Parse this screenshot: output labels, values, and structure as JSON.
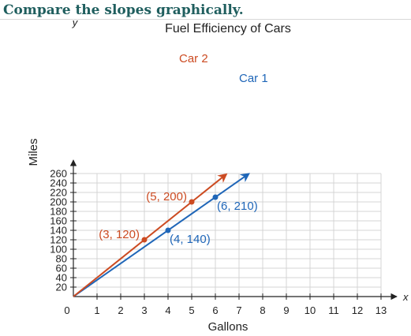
{
  "heading": "Compare the slopes graphically.",
  "chart_data": {
    "type": "line",
    "title": "Fuel Efficiency of Cars",
    "xlabel": "Gallons",
    "ylabel": "Miles",
    "x_var": "x",
    "y_var": "y",
    "xlim": [
      0,
      13
    ],
    "ylim": [
      0,
      260
    ],
    "x_ticks": [
      0,
      1,
      2,
      3,
      4,
      5,
      6,
      7,
      8,
      9,
      10,
      11,
      12,
      13
    ],
    "y_ticks": [
      20,
      40,
      60,
      80,
      100,
      120,
      140,
      160,
      180,
      200,
      220,
      240,
      260
    ],
    "grid": true,
    "series": [
      {
        "name": "Car 1",
        "color": "#1f66b8",
        "line": [
          [
            0,
            0
          ],
          [
            7.4,
            259
          ]
        ],
        "points": [
          [
            4,
            140
          ],
          [
            6,
            210
          ]
        ],
        "point_labels": [
          "(4, 140)",
          "(6, 210)"
        ]
      },
      {
        "name": "Car 2",
        "color": "#cc4b22",
        "line": [
          [
            0,
            0
          ],
          [
            6.45,
            258
          ]
        ],
        "points": [
          [
            3,
            120
          ],
          [
            5,
            200
          ]
        ],
        "point_labels": [
          "(3, 120)",
          "(5, 200)"
        ]
      }
    ]
  }
}
